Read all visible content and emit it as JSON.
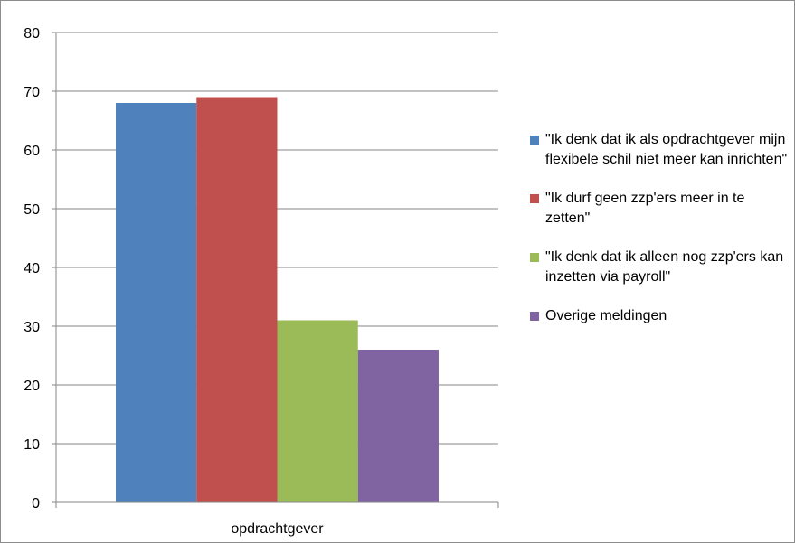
{
  "chart_data": {
    "type": "bar",
    "categories": [
      "opdrachtgever"
    ],
    "series": [
      {
        "name": "\"Ik denk dat ik als opdrachtgever mijn flexibele schil niet meer kan inrichten\"",
        "values": [
          68
        ],
        "color": "#4f81bd"
      },
      {
        "name": "\"Ik durf geen zzp'ers meer in te zetten\"",
        "values": [
          69
        ],
        "color": "#c0504d"
      },
      {
        "name": "\"Ik denk dat ik alleen nog zzp'ers kan inzetten via payroll\"",
        "values": [
          31
        ],
        "color": "#9bbb59"
      },
      {
        "name": "Overige meldingen",
        "values": [
          26
        ],
        "color": "#8064a2"
      }
    ],
    "y_ticks": [
      "0",
      "10",
      "20",
      "30",
      "40",
      "50",
      "60",
      "70",
      "80"
    ],
    "ylim": [
      0,
      80
    ],
    "grid": true,
    "legend_position": "right",
    "title": "",
    "xlabel": "",
    "ylabel": ""
  }
}
